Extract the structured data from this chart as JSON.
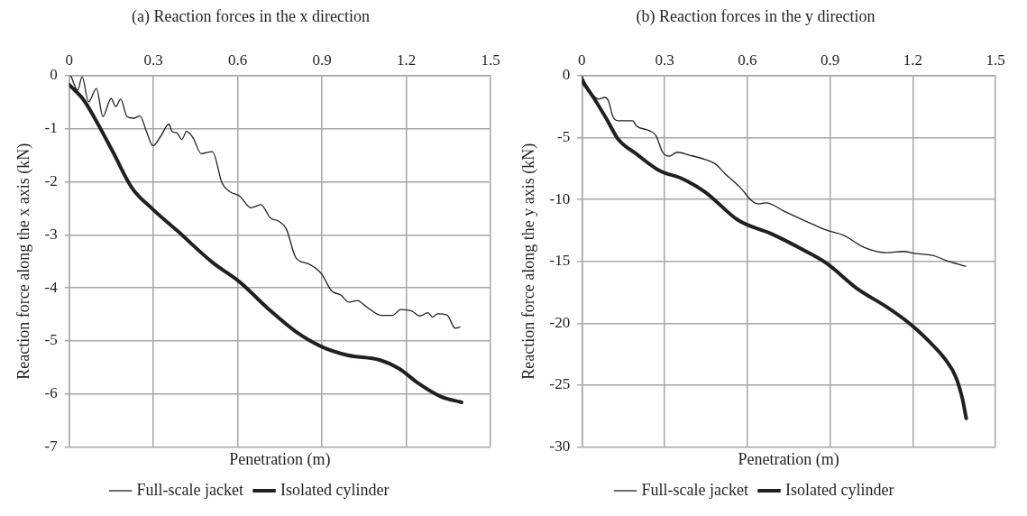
{
  "chart_data": [
    {
      "type": "line",
      "title": "(a) Reaction forces in the x direction",
      "xlabel": "Penetration (m)",
      "ylabel": "Reaction force along the x axis (kN)",
      "xlim": [
        0,
        1.5
      ],
      "xticks": [
        0,
        0.3,
        0.6,
        0.9,
        1.2,
        1.5
      ],
      "ylim": [
        -7,
        0
      ],
      "yticks": [
        -7,
        -6,
        -5,
        -4,
        -3,
        -2,
        -1,
        0
      ],
      "grid": true,
      "legend": "bottom",
      "marker": "none",
      "line_style": "solid",
      "series": [
        {
          "name": "Full-scale jacket",
          "color": "#231f20",
          "x": [
            0.006,
            0.03,
            0.046,
            0.069,
            0.097,
            0.12,
            0.149,
            0.166,
            0.183,
            0.206,
            0.229,
            0.252,
            0.275,
            0.298,
            0.326,
            0.355,
            0.366,
            0.384,
            0.401,
            0.418,
            0.441,
            0.47,
            0.51,
            0.544,
            0.573,
            0.607,
            0.647,
            0.682,
            0.716,
            0.745,
            0.773,
            0.807,
            0.853,
            0.899,
            0.933,
            0.968,
            0.996,
            1.025,
            1.059,
            1.111,
            1.151,
            1.18,
            1.22,
            1.248,
            1.277,
            1.294,
            1.311,
            1.345,
            1.374,
            1.391
          ],
          "values": [
            0,
            -0.27,
            -0.02,
            -0.49,
            -0.24,
            -0.77,
            -0.43,
            -0.58,
            -0.44,
            -0.77,
            -0.8,
            -0.76,
            -1.05,
            -1.32,
            -1.14,
            -0.91,
            -1.05,
            -1.08,
            -1.2,
            -1.05,
            -1.17,
            -1.47,
            -1.43,
            -2.02,
            -2.19,
            -2.27,
            -2.49,
            -2.43,
            -2.68,
            -2.74,
            -2.89,
            -3.43,
            -3.55,
            -3.74,
            -4.05,
            -4.14,
            -4.27,
            -4.24,
            -4.36,
            -4.52,
            -4.52,
            -4.41,
            -4.44,
            -4.53,
            -4.47,
            -4.55,
            -4.49,
            -4.51,
            -4.76,
            -4.74
          ]
        },
        {
          "name": "Isolated cylinder",
          "color": "#231f20",
          "x": [
            0,
            0.052,
            0.097,
            0.155,
            0.223,
            0.298,
            0.384,
            0.51,
            0.607,
            0.716,
            0.808,
            0.899,
            0.991,
            1.105,
            1.174,
            1.243,
            1.323,
            1.397
          ],
          "values": [
            -0.17,
            -0.46,
            -0.86,
            -1.43,
            -2.11,
            -2.52,
            -2.92,
            -3.52,
            -3.89,
            -4.43,
            -4.83,
            -5.11,
            -5.27,
            -5.36,
            -5.52,
            -5.8,
            -6.05,
            -6.16
          ]
        }
      ]
    },
    {
      "type": "line",
      "title": "(b) Reaction forces in the y direction",
      "xlabel": "Penetration (m)",
      "ylabel": "Reaction force along the y axis (kN)",
      "xlim": [
        0,
        1.5
      ],
      "xticks": [
        0,
        0.3,
        0.6,
        0.9,
        1.2,
        1.5
      ],
      "ylim": [
        -30,
        0
      ],
      "yticks": [
        -30,
        -25,
        -20,
        -15,
        -10,
        -5,
        0
      ],
      "grid": true,
      "legend": "bottom",
      "marker": "none",
      "line_style": "solid",
      "series": [
        {
          "name": "Full-scale jacket",
          "color": "#231f20",
          "x": [
            0,
            0.018,
            0.06,
            0.084,
            0.096,
            0.114,
            0.131,
            0.185,
            0.197,
            0.245,
            0.269,
            0.293,
            0.317,
            0.346,
            0.388,
            0.448,
            0.484,
            0.52,
            0.579,
            0.615,
            0.639,
            0.669,
            0.735,
            0.806,
            0.89,
            0.95,
            1.021,
            1.105,
            1.165,
            1.213,
            1.273,
            1.32,
            1.392
          ],
          "values": [
            0,
            -0.8,
            -1.88,
            -1.75,
            -2,
            -3.36,
            -3.63,
            -3.63,
            -4.03,
            -4.44,
            -4.84,
            -6.18,
            -6.5,
            -6.18,
            -6.4,
            -6.77,
            -7.12,
            -7.93,
            -9.14,
            -10.08,
            -10.35,
            -10.27,
            -10.97,
            -11.69,
            -12.5,
            -12.9,
            -13.84,
            -14.3,
            -14.2,
            -14.38,
            -14.52,
            -14.92,
            -15.4
          ]
        },
        {
          "name": "Isolated cylinder",
          "color": "#231f20",
          "x": [
            0,
            0.042,
            0.09,
            0.131,
            0.197,
            0.281,
            0.365,
            0.448,
            0.568,
            0.687,
            0.806,
            0.89,
            0.998,
            1.105,
            1.189,
            1.261,
            1.32,
            1.356,
            1.38,
            1.394
          ],
          "values": [
            -0.4,
            -1.75,
            -3.5,
            -5.1,
            -6.3,
            -7.66,
            -8.33,
            -9.41,
            -11.69,
            -12.77,
            -14.11,
            -15.19,
            -17.2,
            -18.68,
            -20.03,
            -21.51,
            -22.98,
            -24.33,
            -26.08,
            -27.69
          ]
        }
      ]
    }
  ]
}
